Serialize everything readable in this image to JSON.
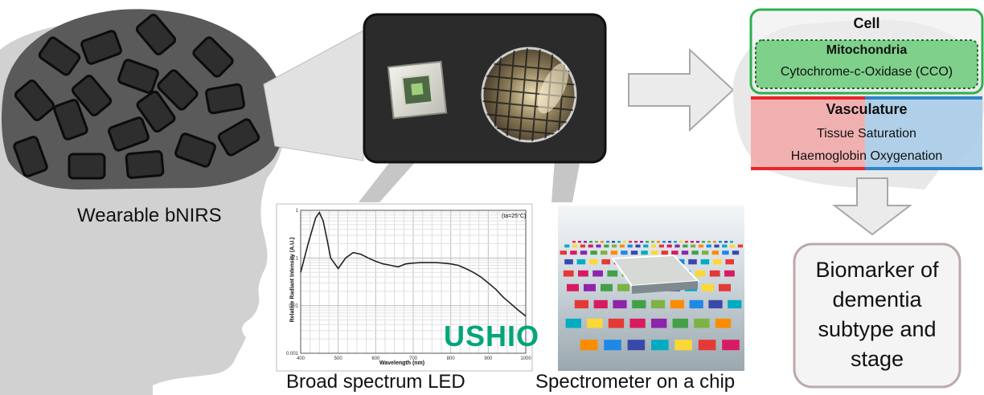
{
  "head": {
    "label": "Wearable bNIRS"
  },
  "led": {
    "caption": "Broad spectrum LED",
    "brand": "USHIO",
    "plot_condition": "(ta=25°C)",
    "xlabel": "Wavelength (nm)",
    "ylabel": "Relative Radiant Intensity (A.U.)",
    "x_ticks": [
      "400",
      "500",
      "600",
      "700",
      "800",
      "900",
      "1000"
    ],
    "y_ticks": [
      "1",
      "0.1",
      "0.01",
      "0.001"
    ]
  },
  "spectrometer": {
    "caption": "Spectrometer on a chip"
  },
  "cell": {
    "title": "Cell",
    "mito_title": "Mitochondria",
    "mito_item": "Cytochrome-c-Oxidase (CCO)",
    "colors": {
      "border": "#2db04b",
      "fill": "#7ed08a"
    }
  },
  "vasculature": {
    "title": "Vasculature",
    "item1": "Tissue Saturation",
    "item2": "Haemoglobin Oxygenation",
    "colors": {
      "red": "#e8262b",
      "blue": "#2e86c9"
    }
  },
  "biomarker": {
    "text": "Biomarker of dementia subtype and stage"
  },
  "chart_data": {
    "type": "line",
    "title": "",
    "xlabel": "Wavelength (nm)",
    "ylabel": "Relative Radiant Intensity (A.U.)",
    "xlim": [
      400,
      1000
    ],
    "ylim": [
      0.001,
      1
    ],
    "yscale": "log",
    "grid": true,
    "x": [
      400,
      420,
      440,
      450,
      460,
      470,
      480,
      500,
      520,
      540,
      560,
      580,
      600,
      620,
      640,
      660,
      680,
      700,
      720,
      740,
      760,
      780,
      800,
      820,
      840,
      860,
      880,
      900,
      920,
      940,
      960,
      980,
      1000
    ],
    "y": [
      0.05,
      0.2,
      0.7,
      0.9,
      0.6,
      0.25,
      0.1,
      0.06,
      0.1,
      0.13,
      0.12,
      0.1,
      0.085,
      0.075,
      0.07,
      0.065,
      0.075,
      0.078,
      0.08,
      0.08,
      0.08,
      0.078,
      0.075,
      0.07,
      0.06,
      0.05,
      0.04,
      0.03,
      0.022,
      0.015,
      0.011,
      0.008,
      0.006
    ]
  }
}
